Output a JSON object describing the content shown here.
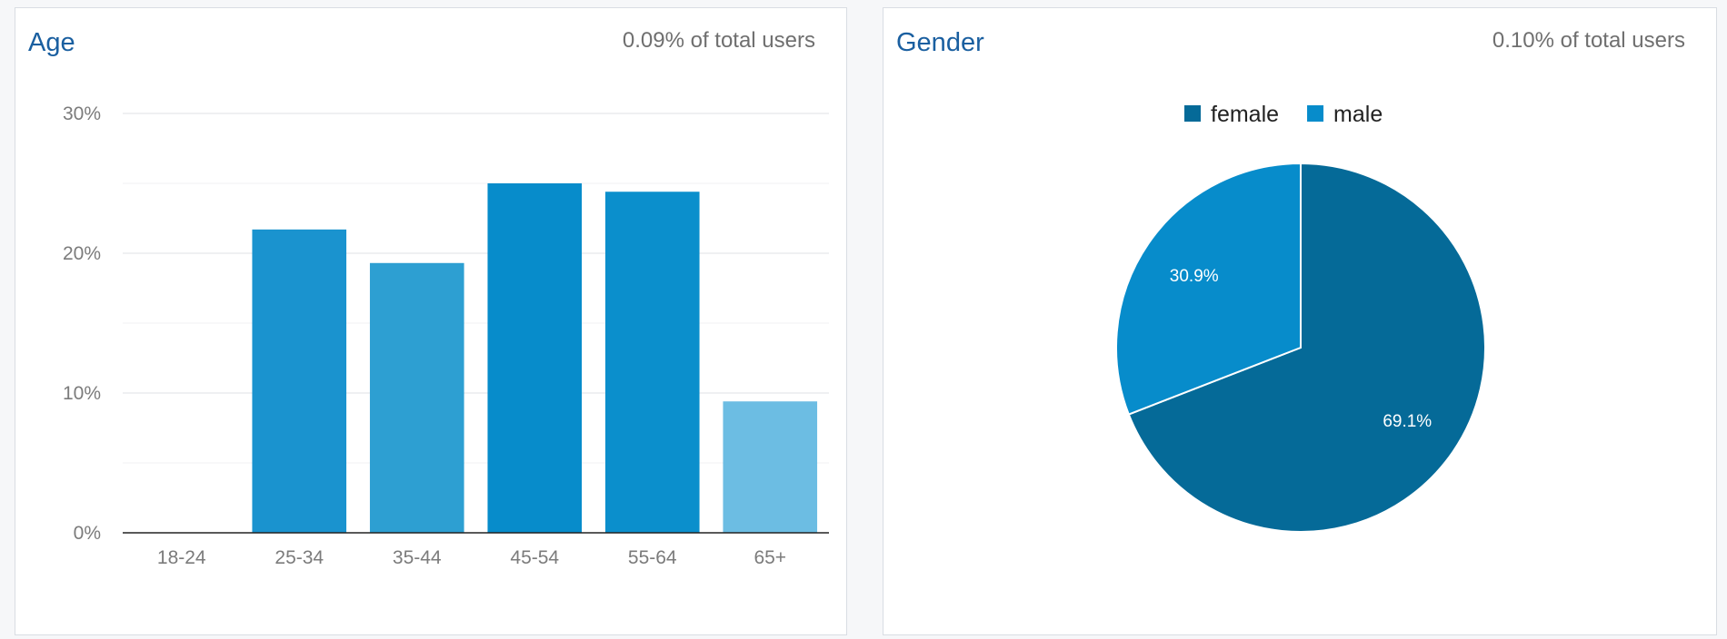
{
  "chart_data": [
    {
      "type": "bar",
      "title": "Age",
      "subtitle": "0.09% of total users",
      "categories": [
        "18-24",
        "25-34",
        "35-44",
        "45-54",
        "55-64",
        "65+"
      ],
      "values": [
        0,
        21.7,
        19.3,
        25.0,
        24.4,
        9.4
      ],
      "colors": [
        "#0b8fcc",
        "#1a93cf",
        "#2d9fd2",
        "#078ccb",
        "#0b8fcc",
        "#6cbde3"
      ],
      "yticks": [
        "0%",
        "10%",
        "20%",
        "30%"
      ],
      "ylim": [
        0,
        30
      ],
      "grid": true,
      "xlabel": "",
      "ylabel": ""
    },
    {
      "type": "pie",
      "title": "Gender",
      "subtitle": "0.10% of total users",
      "legend_position": "top",
      "slices": [
        {
          "label": "female",
          "value": 69.1,
          "display": "69.1%",
          "color": "#056a98"
        },
        {
          "label": "male",
          "value": 30.9,
          "display": "30.9%",
          "color": "#078ccb"
        }
      ]
    }
  ]
}
